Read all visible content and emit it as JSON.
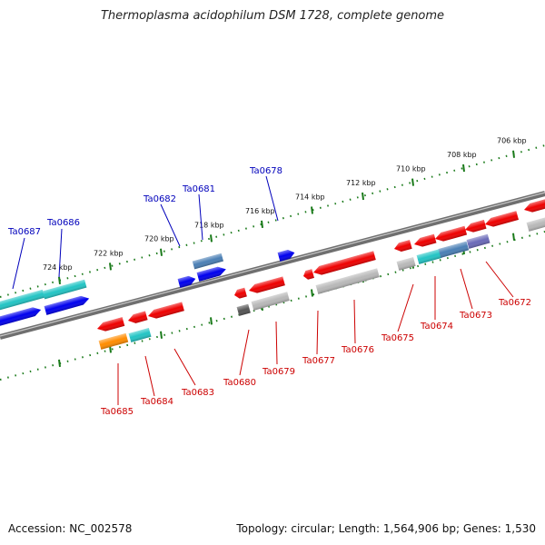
{
  "title": "Thermoplasma acidophilum DSM 1728, complete genome",
  "footer": {
    "accession": "Accession: NC_002578",
    "topology": "Topology: circular; Length: 1,564,906 bp; Genes: 1,530"
  },
  "ruler": {
    "ticks": [
      {
        "label": "724 kbp",
        "kbp": 724
      },
      {
        "label": "722 kbp",
        "kbp": 722
      },
      {
        "label": "720 kbp",
        "kbp": 720
      },
      {
        "label": "718 kbp",
        "kbp": 718
      },
      {
        "label": "716 kbp",
        "kbp": 716
      },
      {
        "label": "714 kbp",
        "kbp": 714
      },
      {
        "label": "712 kbp",
        "kbp": 712
      },
      {
        "label": "710 kbp",
        "kbp": 710
      },
      {
        "label": "708 kbp",
        "kbp": 708
      },
      {
        "label": "706 kbp",
        "kbp": 706
      }
    ]
  },
  "colors": {
    "forward_label": "#0000bb",
    "reverse_label": "#cc0000",
    "backbone": "#808080",
    "ruler": "#1a7a1a"
  },
  "forward_genes": [
    {
      "label": "Ta0687",
      "color": "#0000ee"
    },
    {
      "label": "Ta0686",
      "color": "#0000ee"
    },
    {
      "label": "Ta0682",
      "color": "#0000ee"
    },
    {
      "label": "Ta0681",
      "color": "#0000ee"
    },
    {
      "label": "Ta0678",
      "color": "#0000ee"
    }
  ],
  "reverse_genes": [
    {
      "label": "Ta0685",
      "color": "#ee0000"
    },
    {
      "label": "Ta0684",
      "color": "#ee0000"
    },
    {
      "label": "Ta0683",
      "color": "#ee0000"
    },
    {
      "label": "Ta0680",
      "color": "#ee0000"
    },
    {
      "label": "Ta0679",
      "color": "#ee0000"
    },
    {
      "label": "Ta0677",
      "color": "#ee0000"
    },
    {
      "label": "Ta0676",
      "color": "#ee0000"
    },
    {
      "label": "Ta0675",
      "color": "#ee0000"
    },
    {
      "label": "Ta0674",
      "color": "#ee0000"
    },
    {
      "label": "Ta0673",
      "color": "#ee0000"
    },
    {
      "label": "Ta0672",
      "color": "#ee0000"
    }
  ]
}
